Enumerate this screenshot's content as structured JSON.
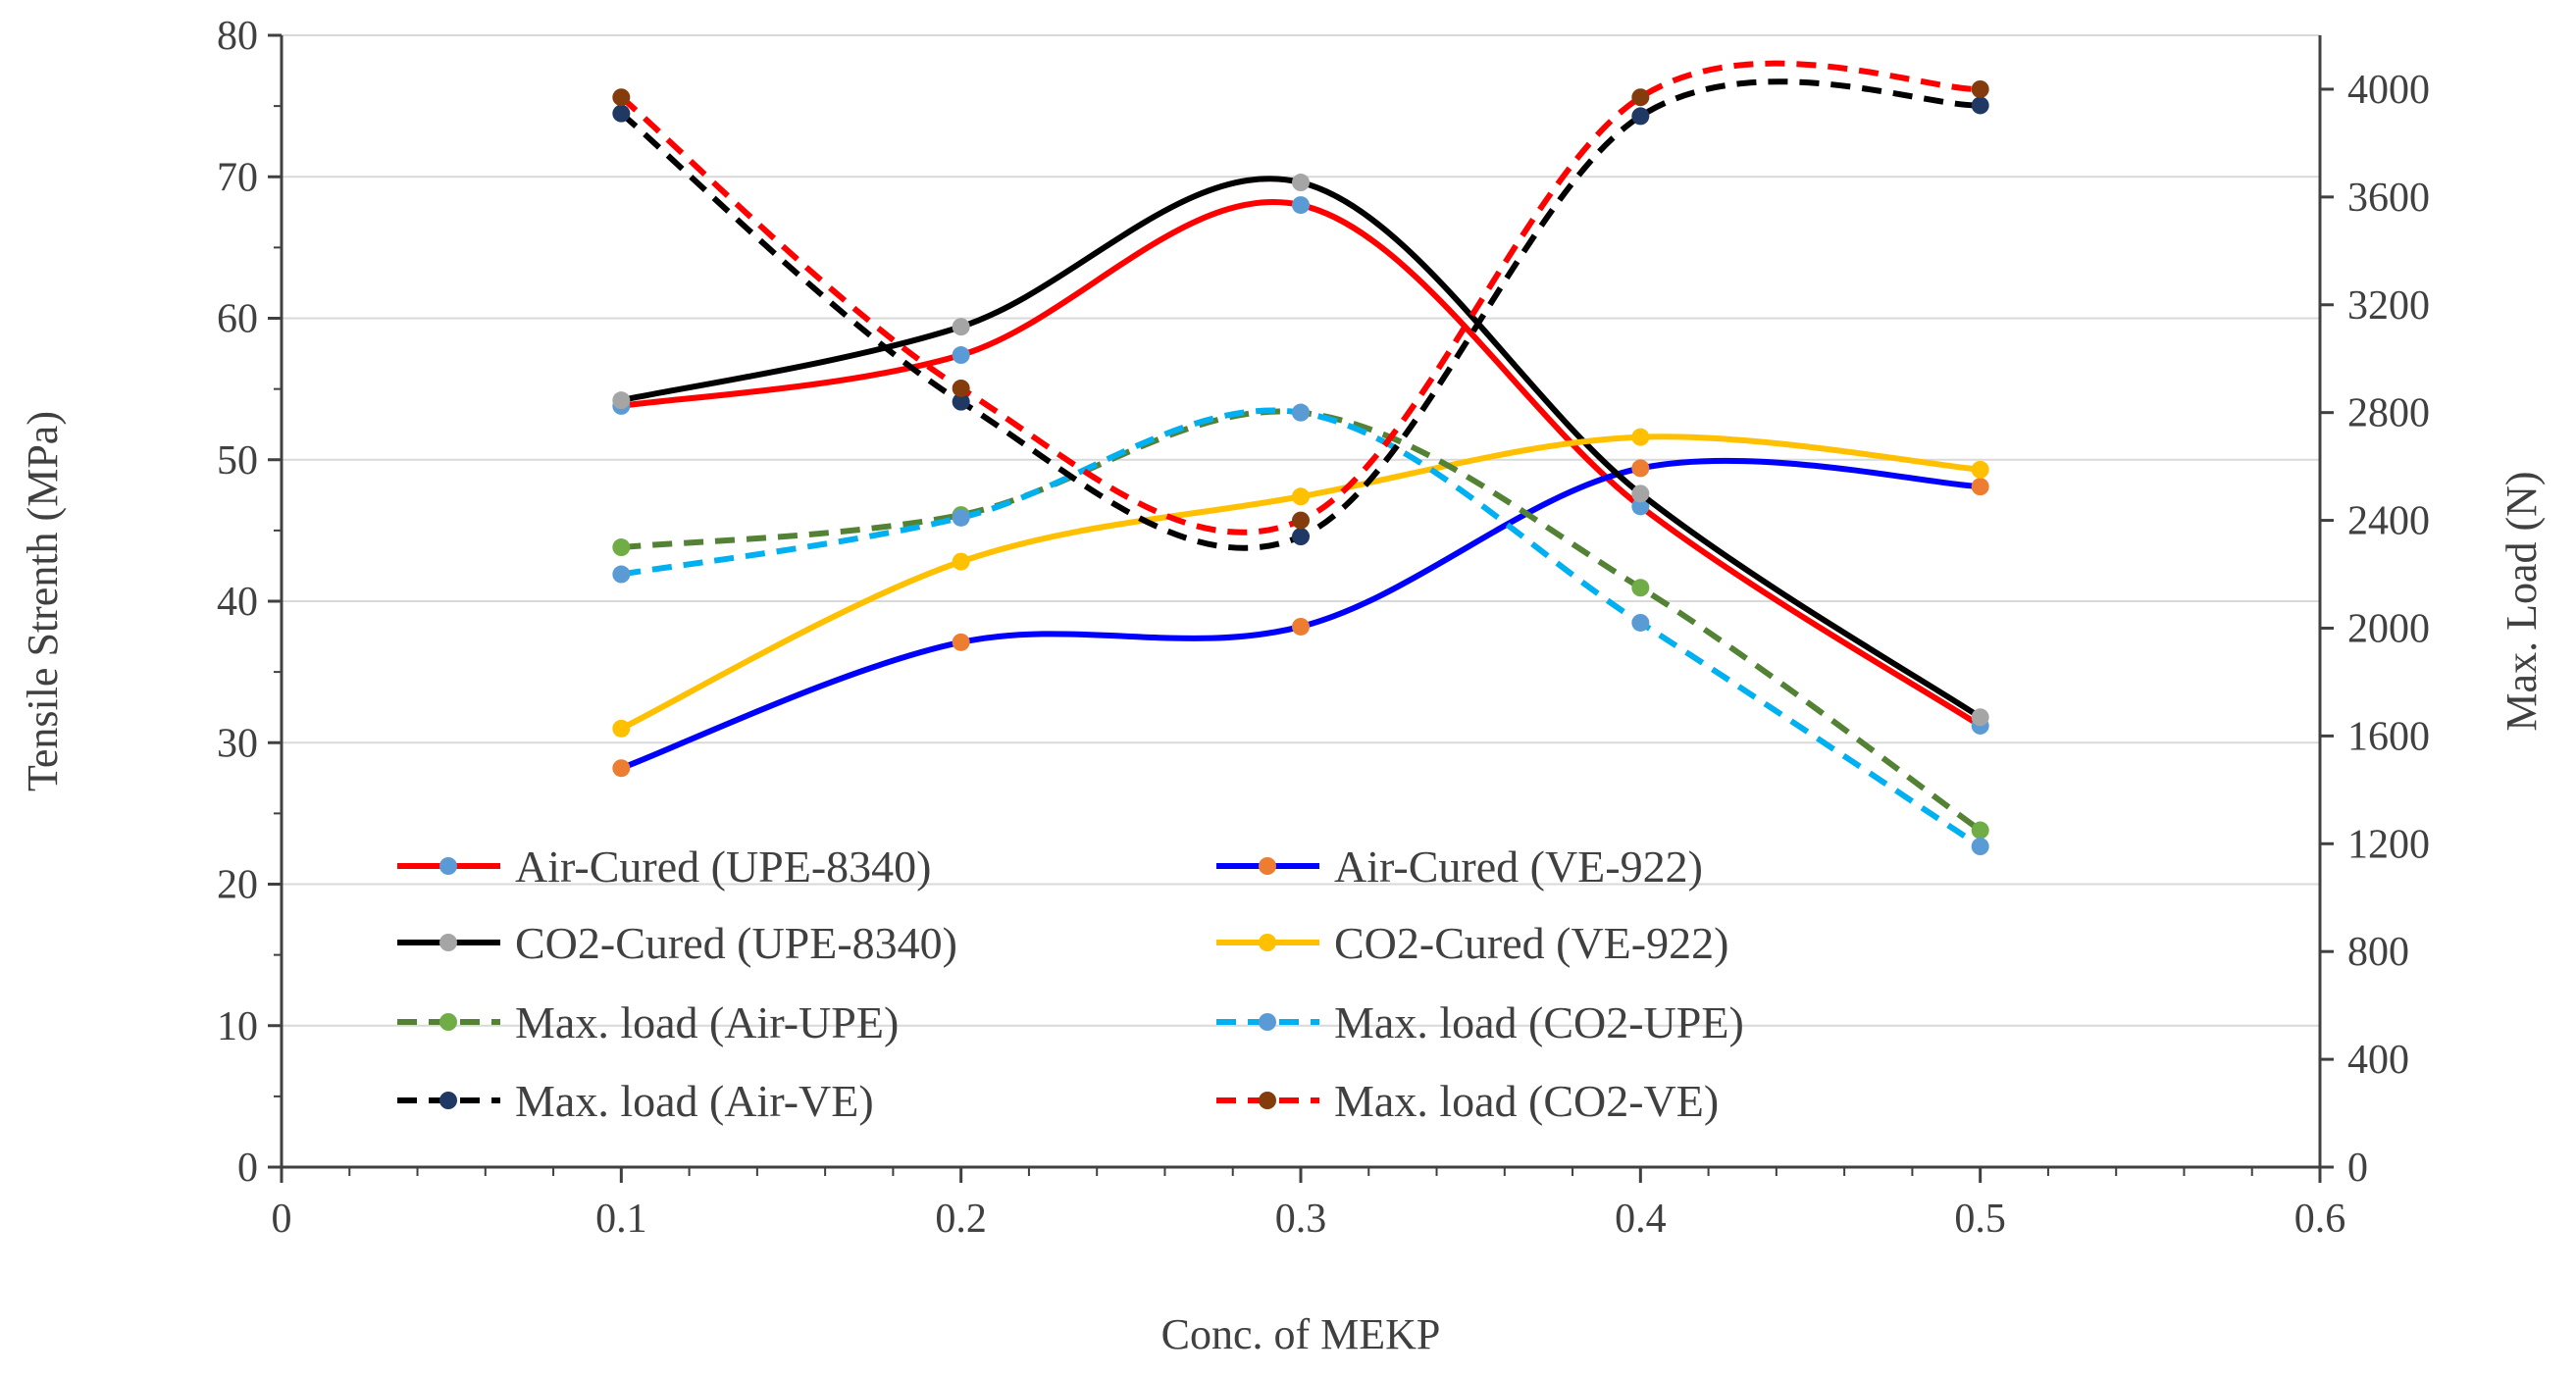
{
  "chart_data": {
    "type": "line",
    "xlabel": "Conc. of MEKP",
    "ylabel": "Tensile Strenth (MPa)",
    "y2label": "Max. Load (N)",
    "xlim": [
      0,
      0.6
    ],
    "ylim": [
      0,
      80
    ],
    "y2lim": [
      0,
      4200
    ],
    "x_ticks": [
      "0",
      "0.1",
      "0.2",
      "0.3",
      "0.4",
      "0.5",
      "0.6"
    ],
    "y_ticks": [
      "0",
      "10",
      "20",
      "30",
      "40",
      "50",
      "60",
      "70",
      "80"
    ],
    "y2_ticks": [
      "0",
      "400",
      "800",
      "1200",
      "1600",
      "2000",
      "2400",
      "2800",
      "3200",
      "3600",
      "4000"
    ],
    "grid": "horizontal",
    "legend_position": "bottom-left",
    "x": [
      0.1,
      0.2,
      0.3,
      0.4,
      0.5
    ],
    "series": [
      {
        "name": "Air-Cured (UPE-8340)",
        "axis": "left",
        "values": [
          53.8,
          57.4,
          68.0,
          46.7,
          31.2
        ],
        "color": "#ff0000",
        "marker": "#5b9bd5",
        "dash": false
      },
      {
        "name": "Air-Cured (VE-922)",
        "axis": "left",
        "values": [
          28.2,
          37.1,
          38.2,
          49.4,
          48.1
        ],
        "color": "#0000ff",
        "marker": "#ed7d31",
        "dash": false
      },
      {
        "name": "CO2-Cured (UPE-8340)",
        "axis": "left",
        "values": [
          54.2,
          59.4,
          69.6,
          47.6,
          31.8
        ],
        "color": "#000000",
        "marker": "#a5a5a5",
        "dash": false
      },
      {
        "name": "CO2-Cured (VE-922)",
        "axis": "left",
        "values": [
          31.0,
          42.8,
          47.4,
          51.6,
          49.3
        ],
        "color": "#ffc000",
        "marker": "#ffc000",
        "dash": false
      },
      {
        "name": "Max. load (Air-UPE)",
        "axis": "right",
        "values": [
          2300,
          2420,
          2800,
          2150,
          1250
        ],
        "color": "#548235",
        "marker": "#70ad47",
        "dash": true
      },
      {
        "name": "Max. load (CO2-UPE)",
        "axis": "right",
        "values": [
          2200,
          2410,
          2800,
          2020,
          1190
        ],
        "color": "#00b0f0",
        "marker": "#5b9bd5",
        "dash": true
      },
      {
        "name": "Max. load (Air-VE)",
        "axis": "right",
        "values": [
          3910,
          2840,
          2340,
          3900,
          3940
        ],
        "color": "#000000",
        "marker": "#1f3864",
        "dash": true
      },
      {
        "name": "Max. load (CO2-VE)",
        "axis": "right",
        "values": [
          3970,
          2890,
          2400,
          3970,
          4000
        ],
        "color": "#ff0000",
        "marker": "#843c0c",
        "dash": true
      }
    ]
  }
}
